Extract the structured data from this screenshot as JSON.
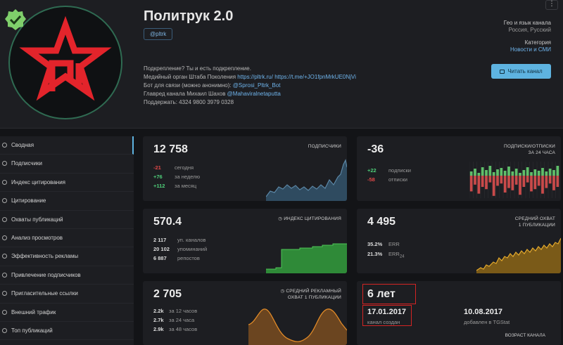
{
  "header": {
    "title": "Политрук 2.0",
    "handle": "@pltrk",
    "menu_glyph": "⋮",
    "desc": {
      "line1": "Подкрепление? Ты и есть подкрепление.",
      "line2_prefix": "Медийный орган Штаба Поколения ",
      "line2_link1": "https://pltrk.ru/",
      "line2_link2": "https://t.me/+JO1fpnMrkUE0NjVi",
      "line3_prefix": "Бот для связи (можно анонимно): ",
      "line3_link": "@Sprosi_Pltrk_Bot",
      "line4_prefix": "Главред канала Михаил Шахов ",
      "line4_link": "@Mahaviralnetaputta",
      "line5": "Поддержать: 4324 9800 3979 0328"
    },
    "geo_label": "Гео и язык канала",
    "geo_value": "Россия, Русский",
    "category_label": "Категория",
    "category_value": "Новости и СМИ",
    "read_button": "Читать канал"
  },
  "sidebar": {
    "items": [
      {
        "label": "Сводная",
        "active": true
      },
      {
        "label": "Подписчики"
      },
      {
        "label": "Индекс цитирования"
      },
      {
        "label": "Цитирование"
      },
      {
        "label": "Охваты публикаций"
      },
      {
        "label": "Анализ просмотров"
      },
      {
        "label": "Эффективность рекламы"
      },
      {
        "label": "Привлечение подписчиков"
      },
      {
        "label": "Пригласительные ссылки"
      },
      {
        "label": "Внешний трафик"
      },
      {
        "label": "Топ публикаций"
      }
    ]
  },
  "cards": {
    "subscribers": {
      "value": "12 758",
      "label": "ПОДПИСЧИКИ",
      "rows": [
        {
          "n": "-21",
          "t": "сегодня"
        },
        {
          "n": "+76",
          "t": "за неделю"
        },
        {
          "n": "+112",
          "t": "за месяц"
        }
      ]
    },
    "net": {
      "value": "-36",
      "label1": "ПОДПИСКИ/ОТПИСКИ",
      "label2": "ЗА 24 ЧАСА",
      "rows": [
        {
          "n": "+22",
          "t": "подписки"
        },
        {
          "n": "-58",
          "t": "отписки"
        }
      ]
    },
    "citation": {
      "value": "570.4",
      "label": "ИНДЕКС ЦИТИРОВАНИЯ",
      "rows": [
        {
          "n": "2 117",
          "t": "уп. каналов"
        },
        {
          "n": "20 102",
          "t": "упоминаний"
        },
        {
          "n": "6 887",
          "t": "репостов"
        }
      ]
    },
    "reach": {
      "value": "4 495",
      "label1": "СРЕДНИЙ ОХВАТ",
      "label2": "1 ПУБЛИКАЦИИ",
      "rows": [
        {
          "n": "35.2%",
          "t": "ERR",
          "sub": ""
        },
        {
          "n": "21.3%",
          "t": "ERR",
          "sub": "24"
        }
      ]
    },
    "adreach": {
      "value": "2 705",
      "label1": "СРЕДНИЙ РЕКЛАМНЫЙ",
      "label2": "ОХВАТ 1 ПУБЛИКАЦИИ",
      "rows": [
        {
          "n": "2.2k",
          "t": "за 12 часов"
        },
        {
          "n": "2.7k",
          "t": "за 24 часа"
        },
        {
          "n": "2.9k",
          "t": "за 48 часов"
        }
      ]
    },
    "age": {
      "value": "6 лет",
      "created_date": "17.01.2017",
      "created_label": "канал создан",
      "added_date": "10.08.2017",
      "added_label": "добавлен в TGStat",
      "label": "ВОЗРАСТ КАНАЛА"
    }
  },
  "colors": {
    "accent": "#5eb3e0",
    "positive": "#4fd07a",
    "negative": "#e04848",
    "subscribers_chart": "#5b87a6",
    "citation_chart": "#3aa244",
    "reach_chart": "#e3a92c",
    "adreach_chart": "#e08a28",
    "highlight_box": "#d42424"
  },
  "icons": {
    "verified": "verified-badge-icon",
    "menu": "kebab-menu-icon",
    "read": "read-channel-icon",
    "citation": "citation-index-icon",
    "adreach": "ad-reach-icon"
  }
}
